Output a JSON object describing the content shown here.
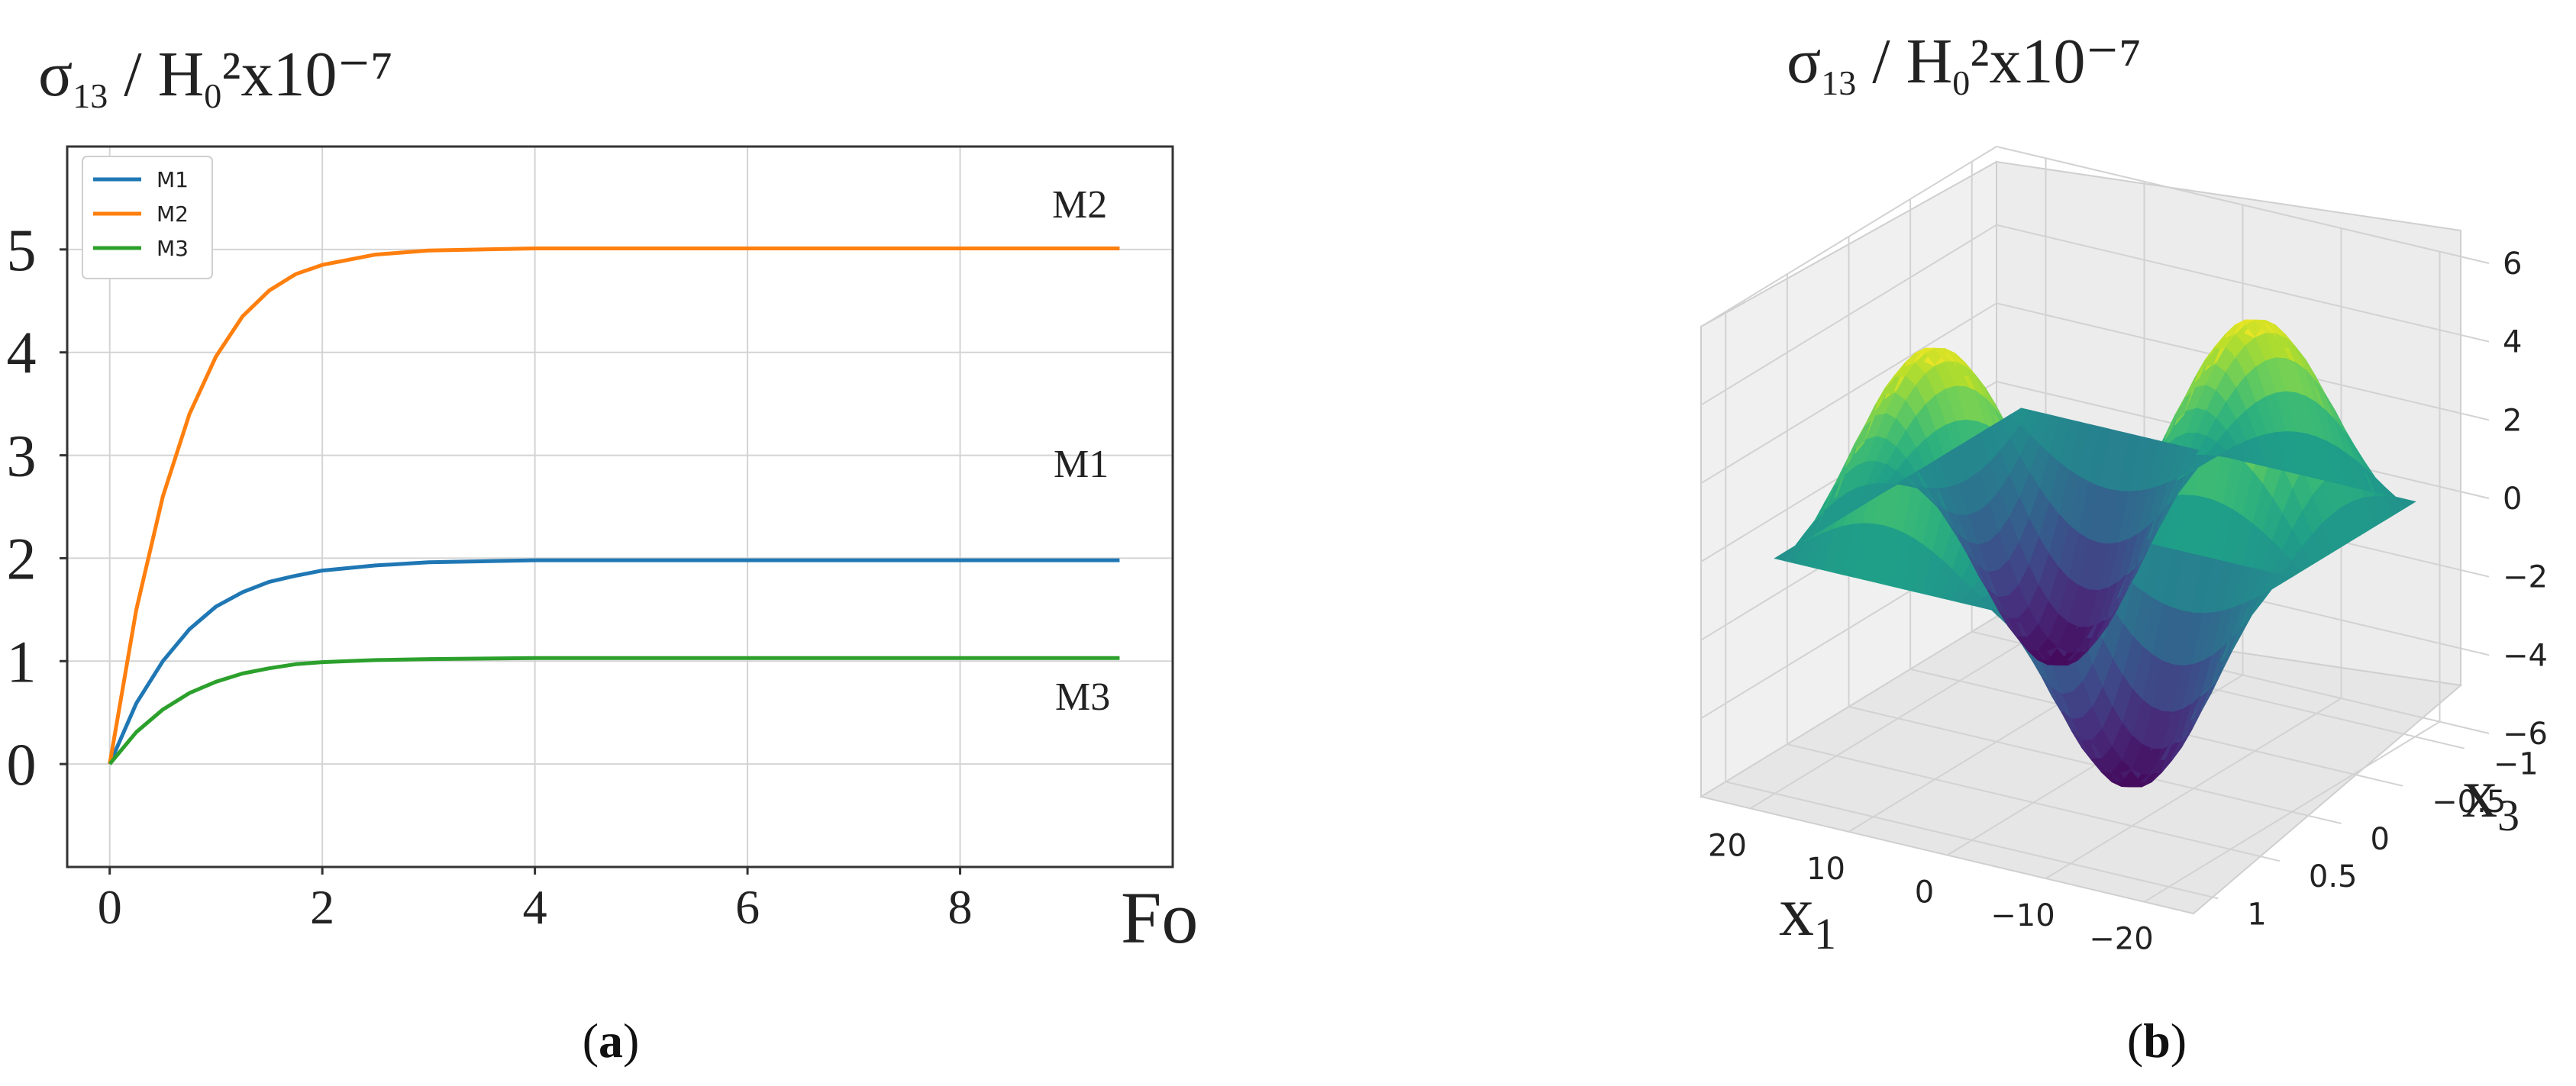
{
  "chart_data": [
    {
      "type": "line",
      "panel_label": "(a)",
      "ylabel": "σ13 / H02x10−7",
      "xlabel": "Fo",
      "xlim": [
        -0.4,
        10.0
      ],
      "ylim": [
        -1,
        6
      ],
      "xticks": [
        0,
        2,
        4,
        6,
        8
      ],
      "yticks": [
        0,
        1,
        2,
        3,
        4,
        5
      ],
      "grid": true,
      "legend_position": "top-left",
      "series": [
        {
          "name": "M1",
          "color": "#1f77b4",
          "x": [
            0,
            0.25,
            0.5,
            0.75,
            1.0,
            1.25,
            1.5,
            1.75,
            2.0,
            2.5,
            3.0,
            4.0,
            5.0,
            6.0,
            7.0,
            8.0,
            9.0,
            9.5
          ],
          "y": [
            0,
            0.59,
            1.0,
            1.31,
            1.53,
            1.67,
            1.77,
            1.83,
            1.88,
            1.93,
            1.96,
            1.98,
            1.98,
            1.98,
            1.98,
            1.98,
            1.98,
            1.98
          ]
        },
        {
          "name": "M2",
          "color": "#ff7f0e",
          "x": [
            0,
            0.25,
            0.5,
            0.75,
            1.0,
            1.25,
            1.5,
            1.75,
            2.0,
            2.5,
            3.0,
            4.0,
            5.0,
            6.0,
            7.0,
            8.0,
            9.0,
            9.5
          ],
          "y": [
            0,
            1.5,
            2.6,
            3.4,
            3.96,
            4.35,
            4.6,
            4.76,
            4.85,
            4.95,
            4.99,
            5.01,
            5.01,
            5.01,
            5.01,
            5.01,
            5.01,
            5.01
          ]
        },
        {
          "name": "M3",
          "color": "#2ca02c",
          "x": [
            0,
            0.25,
            0.5,
            0.75,
            1.0,
            1.25,
            1.5,
            1.75,
            2.0,
            2.5,
            3.0,
            4.0,
            5.0,
            6.0,
            7.0,
            8.0,
            9.0,
            9.5
          ],
          "y": [
            0,
            0.31,
            0.53,
            0.69,
            0.8,
            0.88,
            0.93,
            0.97,
            0.99,
            1.01,
            1.02,
            1.03,
            1.03,
            1.03,
            1.03,
            1.03,
            1.03,
            1.03
          ]
        }
      ],
      "annotations": [
        "M2",
        "M1",
        "M3"
      ]
    },
    {
      "type": "surface",
      "panel_label": "(b)",
      "title": "σ13 / H02x10−7",
      "xlabel": "x1",
      "ylabel": "x3",
      "xlim": [
        -25,
        25
      ],
      "ylim": [
        -1.2,
        1.2
      ],
      "zlim": [
        -6,
        6
      ],
      "xticks": [
        20,
        10,
        0,
        -10,
        -20
      ],
      "yticks": [
        1,
        0.5,
        0,
        -0.5,
        -1
      ],
      "zticks": [
        6,
        4,
        2,
        0,
        -2,
        -4,
        -6
      ],
      "colormap": "viridis",
      "description": "z = 5 sin(pi x1 / 20) sin(pi x3) over x1 in [-20,20], x3 in [-1,1]; two maxima of about +5 and two minima of about -5",
      "amplitude": 5
    }
  ],
  "colors": {
    "grid": "#d4d4d4",
    "axis": "#333333",
    "text": "#222222"
  }
}
